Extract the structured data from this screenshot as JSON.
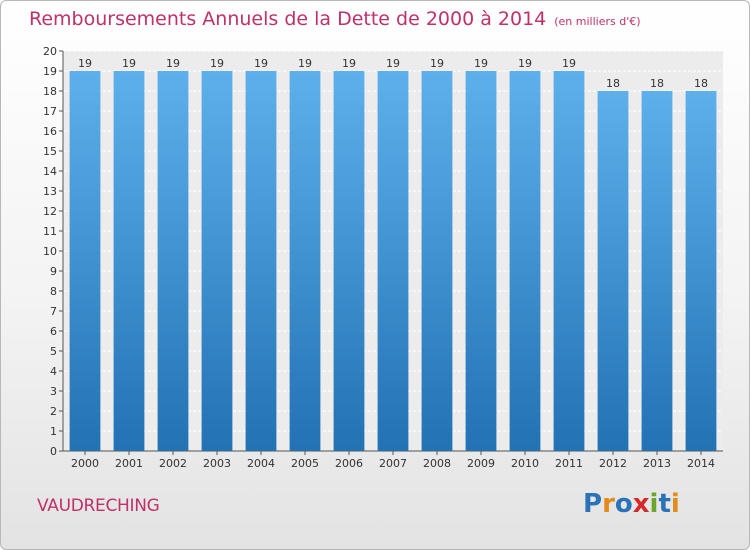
{
  "chart_data": {
    "type": "bar",
    "title": "Remboursements Annuels de la Dette de 2000 à 2014",
    "subtitle": "(en milliers d'€)",
    "categories": [
      "2000",
      "2001",
      "2002",
      "2003",
      "2004",
      "2005",
      "2006",
      "2007",
      "2008",
      "2009",
      "2010",
      "2011",
      "2012",
      "2013",
      "2014"
    ],
    "values": [
      19,
      19,
      19,
      19,
      19,
      19,
      19,
      19,
      19,
      19,
      19,
      19,
      18,
      18,
      18
    ],
    "ylim": [
      0,
      20
    ],
    "yticks": [
      0,
      1,
      2,
      3,
      4,
      5,
      6,
      7,
      8,
      9,
      10,
      11,
      12,
      13,
      14,
      15,
      16,
      17,
      18,
      19,
      20
    ],
    "xlabel": "",
    "ylabel": "",
    "grid": true,
    "bar_color": "#3d8fd6"
  },
  "footer": {
    "commune": "VAUDRECHING",
    "logo": [
      "P",
      "r",
      "o",
      "x",
      "i",
      "t",
      "i"
    ],
    "logo_colors": [
      "#2a73b8",
      "#e48a1b",
      "#2a73b8",
      "#d62a2a",
      "#6aa62b",
      "#2a73b8",
      "#e48a1b"
    ]
  }
}
